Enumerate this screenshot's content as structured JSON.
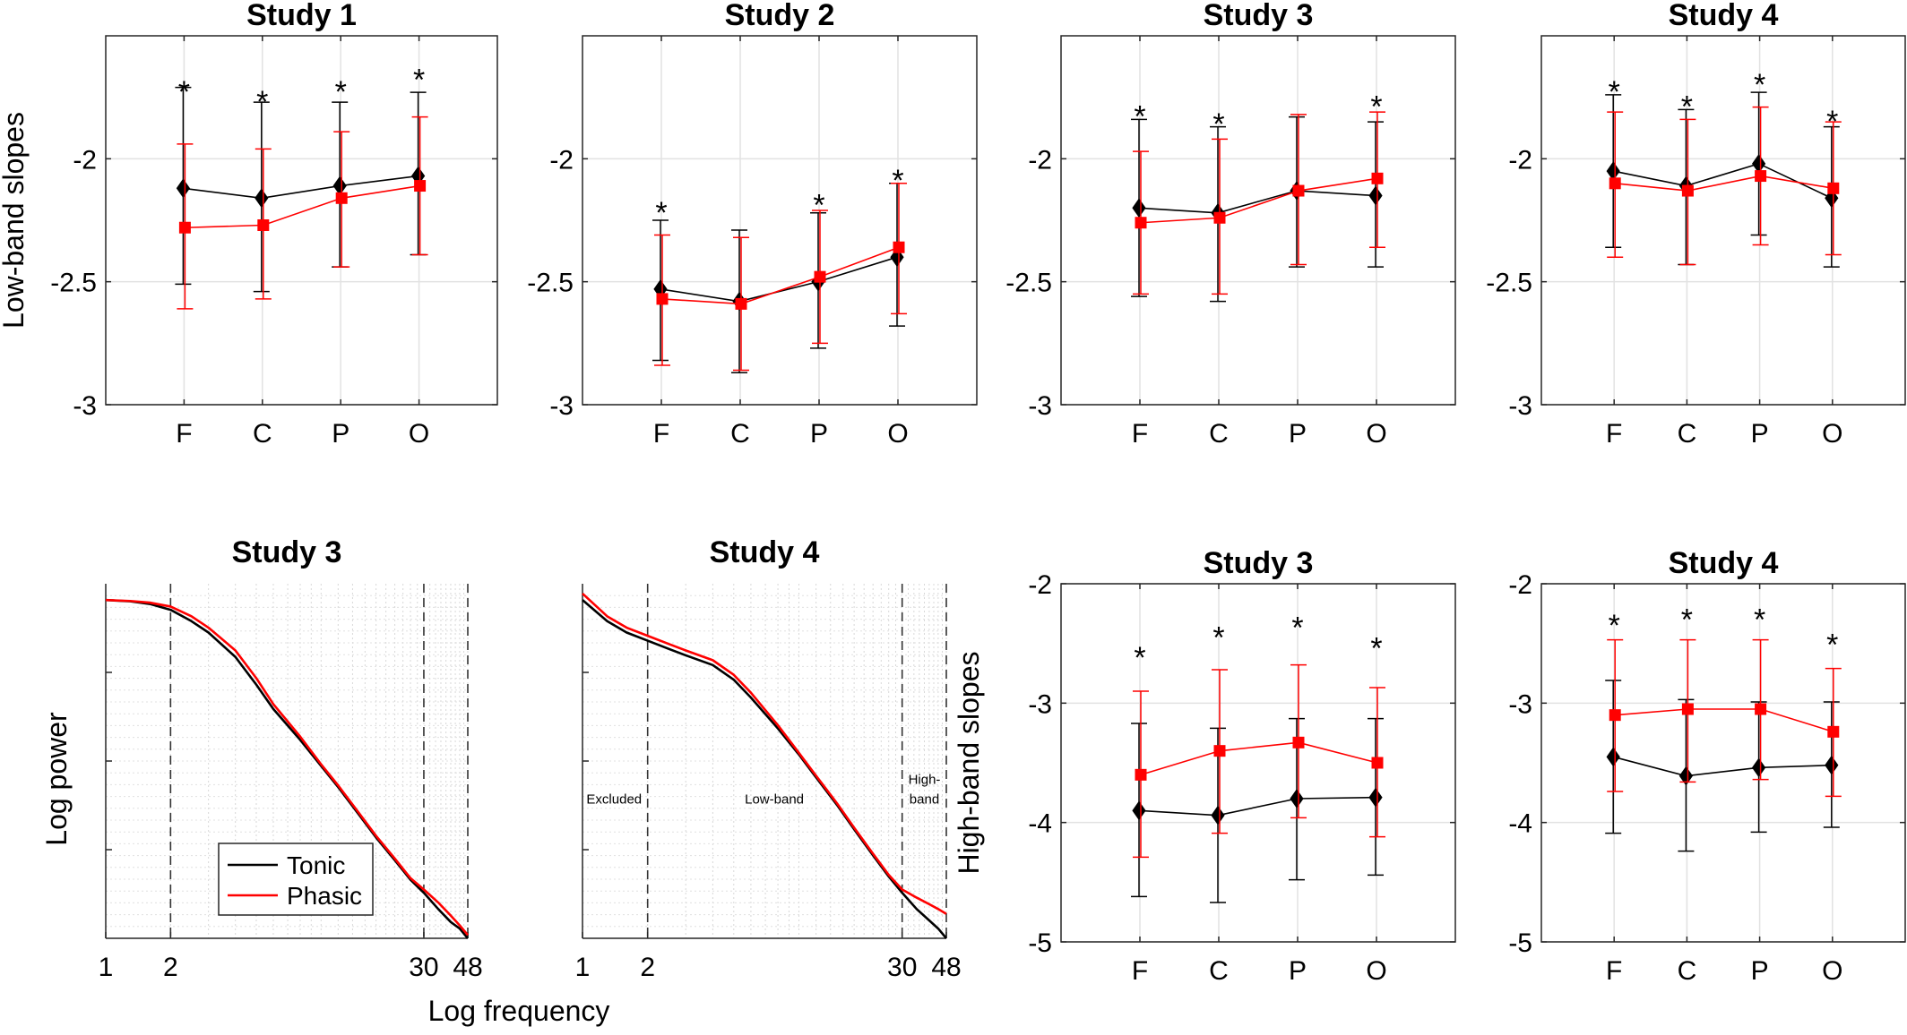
{
  "chart_data": [
    {
      "type": "line",
      "title": "Study 1",
      "ylabel": "Low-band slopes",
      "xlabel": "",
      "categories": [
        "F",
        "C",
        "P",
        "O"
      ],
      "ylim": [
        -3,
        -1.5
      ],
      "yticks": [
        -3,
        -2.5,
        -2
      ],
      "grid": true,
      "series": [
        {
          "color": "#000000",
          "marker": "diamond",
          "values": [
            -2.12,
            -2.16,
            -2.11,
            -2.07
          ],
          "err_lo": [
            -2.51,
            -2.54,
            -2.44,
            -2.39
          ],
          "err_hi": [
            -1.71,
            -1.77,
            -1.77,
            -1.73
          ]
        },
        {
          "color": "#ff0000",
          "marker": "square",
          "values": [
            -2.28,
            -2.27,
            -2.16,
            -2.11
          ],
          "err_lo": [
            -2.61,
            -2.57,
            -2.44,
            -2.39
          ],
          "err_hi": [
            -1.94,
            -1.96,
            -1.89,
            -1.83
          ]
        }
      ],
      "stars": [
        true,
        true,
        true,
        true
      ],
      "star_y": [
        -1.69,
        -1.73,
        -1.69,
        -1.64
      ]
    },
    {
      "type": "line",
      "title": "Study 2",
      "ylabel": "",
      "xlabel": "",
      "categories": [
        "F",
        "C",
        "P",
        "O"
      ],
      "ylim": [
        -3,
        -1.5
      ],
      "yticks": [
        -3,
        -2.5,
        -2
      ],
      "grid": true,
      "series": [
        {
          "color": "#000000",
          "marker": "diamond",
          "values": [
            -2.53,
            -2.58,
            -2.5,
            -2.4
          ],
          "err_lo": [
            -2.82,
            -2.87,
            -2.77,
            -2.68
          ],
          "err_hi": [
            -2.25,
            -2.29,
            -2.22,
            -2.1
          ]
        },
        {
          "color": "#ff0000",
          "marker": "square",
          "values": [
            -2.57,
            -2.59,
            -2.48,
            -2.36
          ],
          "err_lo": [
            -2.84,
            -2.86,
            -2.75,
            -2.63
          ],
          "err_hi": [
            -2.31,
            -2.32,
            -2.21,
            -2.1
          ]
        }
      ],
      "stars": [
        true,
        false,
        true,
        true
      ],
      "star_y": [
        -2.18,
        0,
        -2.15,
        -2.05
      ]
    },
    {
      "type": "line",
      "title": "Study 3",
      "ylabel": "",
      "xlabel": "",
      "categories": [
        "F",
        "C",
        "P",
        "O"
      ],
      "ylim": [
        -3,
        -1.5
      ],
      "yticks": [
        -3,
        -2.5,
        -2
      ],
      "grid": true,
      "series": [
        {
          "color": "#000000",
          "marker": "diamond",
          "values": [
            -2.2,
            -2.22,
            -2.13,
            -2.15
          ],
          "err_lo": [
            -2.56,
            -2.58,
            -2.44,
            -2.44
          ],
          "err_hi": [
            -1.84,
            -1.87,
            -1.83,
            -1.85
          ]
        },
        {
          "color": "#ff0000",
          "marker": "square",
          "values": [
            -2.26,
            -2.24,
            -2.13,
            -2.08
          ],
          "err_lo": [
            -2.55,
            -2.55,
            -2.43,
            -2.36
          ],
          "err_hi": [
            -1.97,
            -1.92,
            -1.82,
            -1.81
          ]
        }
      ],
      "stars": [
        true,
        true,
        false,
        true
      ],
      "star_y": [
        -1.79,
        -1.82,
        0,
        -1.75
      ]
    },
    {
      "type": "line",
      "title": "Study 4",
      "ylabel": "",
      "xlabel": "",
      "categories": [
        "F",
        "C",
        "P",
        "O"
      ],
      "ylim": [
        -3,
        -1.5
      ],
      "yticks": [
        -3,
        -2.5,
        -2
      ],
      "grid": true,
      "series": [
        {
          "color": "#000000",
          "marker": "diamond",
          "values": [
            -2.05,
            -2.11,
            -2.02,
            -2.16
          ],
          "err_lo": [
            -2.36,
            -2.43,
            -2.31,
            -2.44
          ],
          "err_hi": [
            -1.74,
            -1.8,
            -1.73,
            -1.87
          ]
        },
        {
          "color": "#ff0000",
          "marker": "square",
          "values": [
            -2.1,
            -2.13,
            -2.07,
            -2.12
          ],
          "err_lo": [
            -2.4,
            -2.43,
            -2.35,
            -2.39
          ],
          "err_hi": [
            -1.81,
            -1.84,
            -1.79,
            -1.85
          ]
        }
      ],
      "stars": [
        true,
        true,
        true,
        true
      ],
      "star_y": [
        -1.69,
        -1.75,
        -1.66,
        -1.81
      ]
    },
    {
      "type": "line",
      "title": "Study 3",
      "xlabel": "Log frequency",
      "ylabel": "Log power",
      "xscale": "log",
      "xlim": [
        1,
        48
      ],
      "xticks": [
        "1",
        "2",
        "30",
        "48"
      ],
      "grid": "minor-dotted",
      "vlines": [
        2,
        30,
        48
      ],
      "regions": [],
      "legend": {
        "position": "lower-left",
        "entries": [
          "Tonic",
          "Phasic"
        ]
      },
      "series": [
        {
          "name": "Tonic",
          "color": "#000000",
          "x": [
            1,
            1.3,
            1.6,
            2,
            2.5,
            3,
            4,
            5,
            6,
            8,
            10,
            12,
            15,
            18,
            22,
            26,
            30,
            35,
            40,
            44,
            48
          ],
          "y": [
            0.0,
            -0.004,
            -0.012,
            -0.03,
            -0.065,
            -0.1,
            -0.175,
            -0.26,
            -0.335,
            -0.43,
            -0.51,
            -0.575,
            -0.66,
            -0.73,
            -0.8,
            -0.86,
            -0.9,
            -0.95,
            -0.99,
            -1.01,
            -1.04
          ]
        },
        {
          "name": "Phasic",
          "color": "#ff0000",
          "x": [
            1,
            1.3,
            1.6,
            2,
            2.5,
            3,
            4,
            5,
            6,
            8,
            10,
            12,
            15,
            18,
            22,
            26,
            30,
            35,
            40,
            44,
            48
          ],
          "y": [
            0.0,
            -0.003,
            -0.008,
            -0.02,
            -0.05,
            -0.085,
            -0.155,
            -0.24,
            -0.32,
            -0.42,
            -0.505,
            -0.57,
            -0.655,
            -0.725,
            -0.795,
            -0.855,
            -0.89,
            -0.93,
            -0.97,
            -1.0,
            -1.03
          ]
        }
      ]
    },
    {
      "type": "line",
      "title": "Study 4",
      "xlabel": "",
      "ylabel": "",
      "xscale": "log",
      "xlim": [
        1,
        48
      ],
      "xticks": [
        "1",
        "2",
        "30",
        "48"
      ],
      "grid": "minor-dotted",
      "vlines": [
        2,
        30,
        48
      ],
      "regions": [
        {
          "text": "Excluded",
          "x": 1.4
        },
        {
          "text": "Low-band",
          "x": 7.7
        },
        {
          "text": "High-",
          "x": 38
        },
        {
          "text": "band",
          "x": 38
        }
      ],
      "series": [
        {
          "name": "Tonic",
          "color": "#000000",
          "x": [
            1,
            1.3,
            1.6,
            2,
            2.5,
            3,
            4,
            5,
            6,
            8,
            10,
            12,
            15,
            18,
            22,
            26,
            30,
            35,
            40,
            44,
            48
          ],
          "y": [
            0.0,
            -0.065,
            -0.1,
            -0.125,
            -0.15,
            -0.17,
            -0.2,
            -0.245,
            -0.3,
            -0.395,
            -0.475,
            -0.545,
            -0.63,
            -0.705,
            -0.785,
            -0.85,
            -0.9,
            -0.95,
            -0.985,
            -1.01,
            -1.04
          ]
        },
        {
          "name": "Phasic",
          "color": "#ff0000",
          "x": [
            1,
            1.3,
            1.6,
            2,
            2.5,
            3,
            4,
            5,
            6,
            8,
            10,
            12,
            15,
            18,
            22,
            26,
            30,
            35,
            40,
            44,
            48
          ],
          "y": [
            0.02,
            -0.05,
            -0.085,
            -0.11,
            -0.135,
            -0.155,
            -0.185,
            -0.23,
            -0.285,
            -0.385,
            -0.47,
            -0.54,
            -0.625,
            -0.7,
            -0.78,
            -0.845,
            -0.89,
            -0.915,
            -0.935,
            -0.95,
            -0.965
          ]
        }
      ]
    },
    {
      "type": "line",
      "title": "Study 3",
      "ylabel": "High-band slopes",
      "xlabel": "",
      "categories": [
        "F",
        "C",
        "P",
        "O"
      ],
      "ylim": [
        -5,
        -2
      ],
      "yticks": [
        -5,
        -4,
        -3,
        -2
      ],
      "grid": true,
      "series": [
        {
          "color": "#000000",
          "marker": "diamond",
          "values": [
            -3.9,
            -3.94,
            -3.8,
            -3.79
          ],
          "err_lo": [
            -4.62,
            -4.67,
            -4.48,
            -4.44
          ],
          "err_hi": [
            -3.17,
            -3.21,
            -3.13,
            -3.13
          ]
        },
        {
          "color": "#ff0000",
          "marker": "square",
          "values": [
            -3.6,
            -3.4,
            -3.33,
            -3.5
          ],
          "err_lo": [
            -4.29,
            -4.09,
            -3.96,
            -4.12
          ],
          "err_hi": [
            -2.9,
            -2.72,
            -2.68,
            -2.87
          ]
        }
      ],
      "stars": [
        true,
        true,
        true,
        true
      ],
      "star_y": [
        -2.54,
        -2.37,
        -2.29,
        -2.46
      ]
    },
    {
      "type": "line",
      "title": "Study 4",
      "ylabel": "",
      "xlabel": "",
      "categories": [
        "F",
        "C",
        "P",
        "O"
      ],
      "ylim": [
        -5,
        -2
      ],
      "yticks": [
        -5,
        -4,
        -3,
        -2
      ],
      "grid": true,
      "series": [
        {
          "color": "#000000",
          "marker": "diamond",
          "values": [
            -3.45,
            -3.61,
            -3.54,
            -3.52
          ],
          "err_lo": [
            -4.09,
            -4.24,
            -4.08,
            -4.04
          ],
          "err_hi": [
            -2.81,
            -2.97,
            -2.99,
            -2.99
          ]
        },
        {
          "color": "#ff0000",
          "marker": "square",
          "values": [
            -3.1,
            -3.05,
            -3.05,
            -3.24
          ],
          "err_lo": [
            -3.74,
            -3.66,
            -3.64,
            -3.78
          ],
          "err_hi": [
            -2.47,
            -2.47,
            -2.47,
            -2.71
          ]
        }
      ],
      "stars": [
        true,
        true,
        true,
        true
      ],
      "star_y": [
        -2.27,
        -2.22,
        -2.22,
        -2.43
      ]
    }
  ]
}
